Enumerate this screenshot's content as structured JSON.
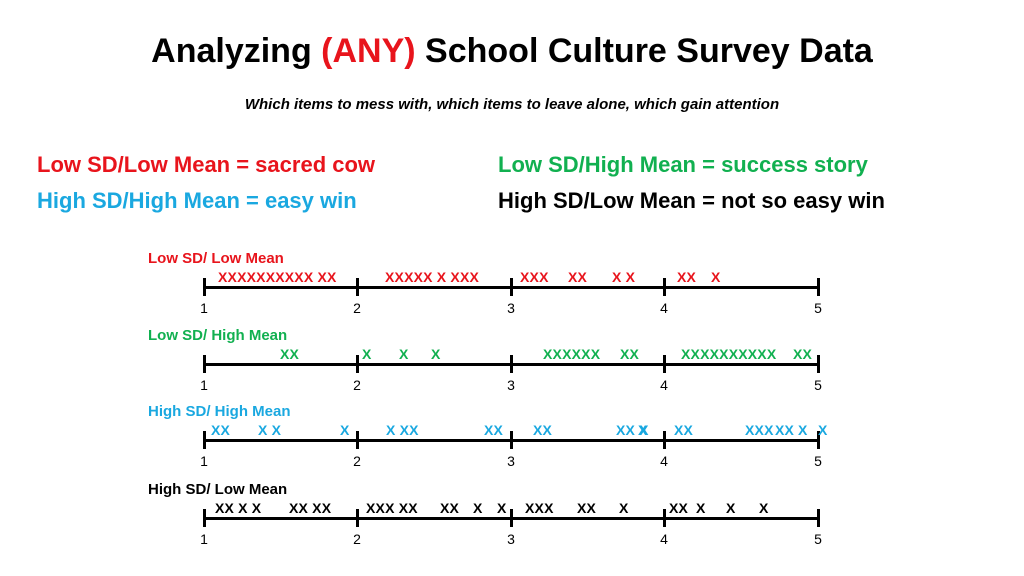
{
  "title": {
    "part1": "Analyzing ",
    "highlight": "(ANY)",
    "part2": " School Culture Survey Data"
  },
  "subtitle": "Which items to mess with, which items to leave alone, which gain attention",
  "legend": {
    "low_sd_low_mean": "Low SD/Low Mean = sacred cow",
    "high_sd_high_mean": "High SD/High Mean = easy win",
    "low_sd_high_mean": "Low SD/High Mean = success story",
    "high_sd_low_mean": "High SD/Low Mean = not so easy win"
  },
  "colors": {
    "red": "#e8141c",
    "green": "#11b050",
    "blue": "#1aa8e0",
    "black": "#000000"
  },
  "axis_ticks": [
    "1",
    "2",
    "3",
    "4",
    "5"
  ],
  "rows": [
    {
      "label": "Low SD/ Low Mean",
      "color": "red",
      "marks": [
        "XXXXXXXXXX XX",
        "XXXXX X XXX",
        "XXX",
        "XX",
        "X X",
        "XX",
        "X"
      ]
    },
    {
      "label": "Low SD/ High Mean",
      "color": "green",
      "marks": [
        "XX",
        "X",
        "X",
        "X",
        "XXXXXX",
        "XX",
        "XXXXXXXXXX",
        "XX"
      ]
    },
    {
      "label": "High SD/ High Mean",
      "color": "blue",
      "marks": [
        "XX",
        "X X",
        "X",
        "X XX",
        "XX",
        "XX",
        "XX X",
        "X",
        "XX",
        "XXX",
        "XX",
        "X",
        "X"
      ]
    },
    {
      "label": "High SD/ Low Mean",
      "color": "black",
      "marks": [
        "XX X X",
        "XX XX",
        "XXX XX",
        "XX",
        "X",
        "X",
        "XXX",
        "XX",
        "X",
        "XX",
        "X",
        "X",
        "X"
      ]
    }
  ]
}
